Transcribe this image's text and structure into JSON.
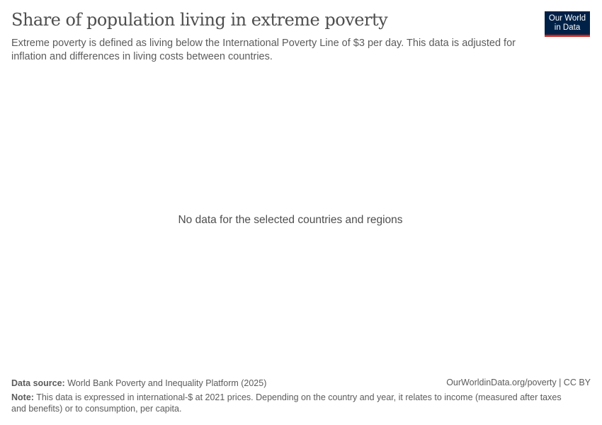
{
  "header": {
    "title": "Share of population living in extreme poverty",
    "subtitle": "Extreme poverty is defined as living below the International Poverty Line of $3 per day. This data is adjusted for inflation and differences in living costs between countries.",
    "logo_text": "Our World in Data",
    "logo_colors": {
      "background": "#002147",
      "accent": "#ce261e"
    }
  },
  "chart_data": {
    "type": "line",
    "title": "Share of population living in extreme poverty",
    "series": [],
    "message": "No data for the selected countries and regions"
  },
  "footer": {
    "source_label": "Data source:",
    "source_text": "World Bank Poverty and Inequality Platform (2025)",
    "license": "OurWorldinData.org/poverty | CC BY",
    "note_label": "Note:",
    "note_text": "This data is expressed in international-$ at 2021 prices. Depending on the country and year, it relates to income (measured after taxes and benefits) or to consumption, per capita."
  }
}
